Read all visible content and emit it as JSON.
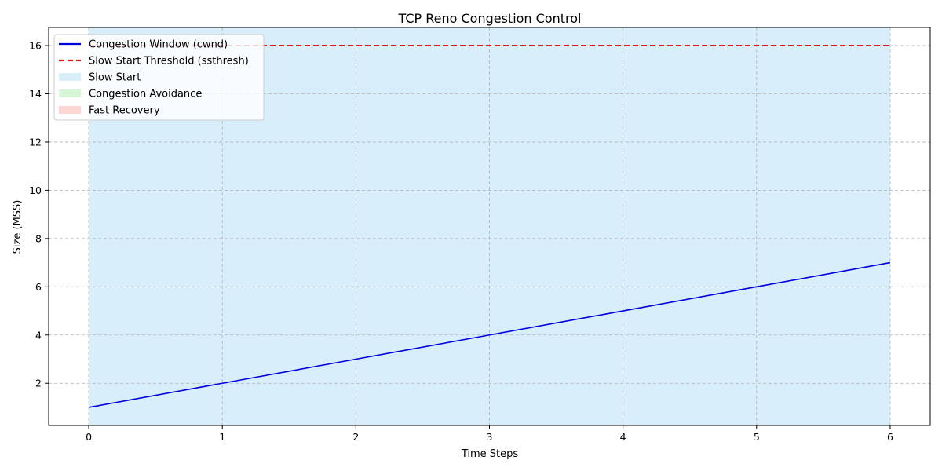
{
  "chart_data": {
    "type": "line",
    "title": "TCP Reno Congestion Control",
    "xlabel": "Time Steps",
    "ylabel": "Size (MSS)",
    "xlim": [
      -0.3,
      6.3
    ],
    "ylim": [
      0.25,
      16.75
    ],
    "xticks": [
      0,
      1,
      2,
      3,
      4,
      5,
      6
    ],
    "yticks": [
      2,
      4,
      6,
      8,
      10,
      12,
      14,
      16
    ],
    "grid": true,
    "legend_position": "top-left",
    "series": [
      {
        "name": "Congestion Window (cwnd)",
        "style": "solid",
        "color": "#0000dd",
        "x": [
          0,
          1,
          2,
          3,
          4,
          5,
          6
        ],
        "y": [
          1,
          2,
          3,
          4,
          5,
          6,
          7
        ]
      },
      {
        "name": "Slow Start Threshold (ssthresh)",
        "style": "dashed",
        "color": "#e31a1c",
        "x": [
          0,
          1,
          2,
          3,
          4,
          5,
          6
        ],
        "y": [
          16,
          16,
          16,
          16,
          16,
          16,
          16
        ]
      }
    ],
    "phases": [
      {
        "name": "Slow Start",
        "color": "#d9eefb",
        "x_start": 0,
        "x_end": 6
      },
      {
        "name": "Congestion Avoidance",
        "color": "#d7f5d7",
        "x_start": null,
        "x_end": null
      },
      {
        "name": "Fast Recovery",
        "color": "#fcd7d1",
        "x_start": null,
        "x_end": null
      }
    ]
  }
}
